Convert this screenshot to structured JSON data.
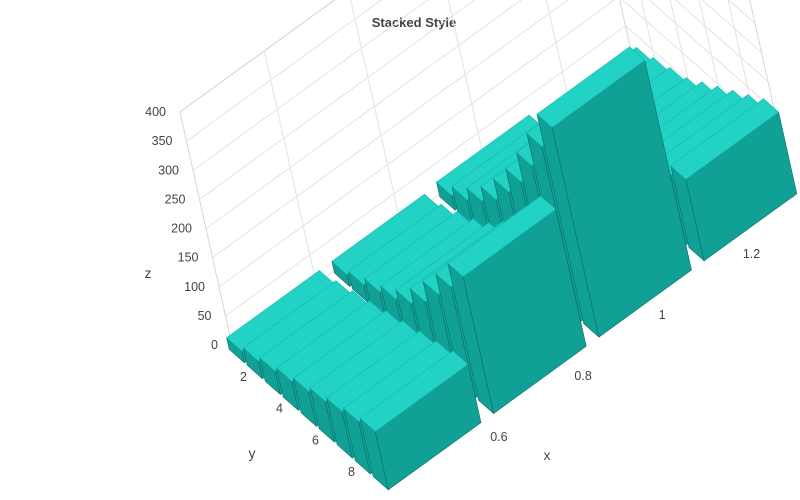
{
  "chart_data": {
    "type": "bar3d",
    "title": "Stacked Style",
    "xlabel": "x",
    "ylabel": "y",
    "zlabel": "z",
    "x_ticks": [
      "0.6",
      "0.8",
      "1",
      "1.2"
    ],
    "y_ticks": [
      "2",
      "4",
      "6",
      "8"
    ],
    "z_ticks": [
      "0",
      "50",
      "100",
      "150",
      "200",
      "250",
      "300",
      "350",
      "400"
    ],
    "zlim": [
      0,
      400
    ],
    "grid": true,
    "bar_color": "#11a096",
    "bar_top_color": "#22d3c5",
    "rows": [
      {
        "x": 0.5,
        "values": [
          20,
          30,
          40,
          50,
          60,
          70,
          80,
          90,
          100
        ]
      },
      {
        "x": 0.75,
        "values": [
          20,
          30,
          45,
          60,
          80,
          110,
          150,
          190,
          235
        ]
      },
      {
        "x": 1.0,
        "values": [
          25,
          45,
          70,
          100,
          140,
          185,
          240,
          300,
          360
        ]
      },
      {
        "x": 1.25,
        "values": [
          10,
          20,
          30,
          40,
          60,
          80,
          100,
          120,
          140
        ]
      }
    ],
    "y_values": [
      1,
      2,
      3,
      4,
      5,
      6,
      7,
      8,
      9
    ]
  }
}
